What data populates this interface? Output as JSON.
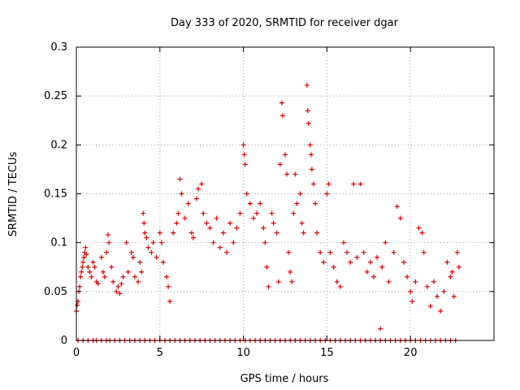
{
  "chart_data": {
    "type": "scatter",
    "title": "Day 333 of 2020, SRMTID for receiver dgar",
    "xlabel": "GPS time / hours",
    "ylabel": "SRMTID / TECUs",
    "xlim": [
      0,
      25
    ],
    "ylim": [
      0,
      0.3
    ],
    "xticks": [
      0,
      5,
      10,
      15,
      20
    ],
    "xtick_labels": [
      "0",
      "5",
      "10",
      "15",
      "20"
    ],
    "yticks": [
      0,
      0.05,
      0.1,
      0.15,
      0.2,
      0.25,
      0.3
    ],
    "ytick_labels": [
      "0",
      "0.05",
      "0.1",
      "0.15",
      "0.2",
      "0.25",
      "0.3"
    ],
    "grid": true,
    "marker": "plus",
    "color": "#dd0000",
    "series": [
      {
        "name": "SRMTID",
        "points": [
          [
            0.0,
            0.03
          ],
          [
            0.05,
            0.036
          ],
          [
            0.1,
            0.04
          ],
          [
            0.15,
            0.05
          ],
          [
            0.2,
            0.055
          ],
          [
            0.25,
            0.065
          ],
          [
            0.3,
            0.07
          ],
          [
            0.35,
            0.075
          ],
          [
            0.4,
            0.08
          ],
          [
            0.45,
            0.085
          ],
          [
            0.5,
            0.09
          ],
          [
            0.55,
            0.095
          ],
          [
            0.6,
            0.088
          ],
          [
            0.7,
            0.075
          ],
          [
            0.8,
            0.07
          ],
          [
            0.9,
            0.065
          ],
          [
            1.0,
            0.08
          ],
          [
            1.1,
            0.075
          ],
          [
            1.2,
            0.06
          ],
          [
            1.3,
            0.058
          ],
          [
            1.5,
            0.085
          ],
          [
            1.6,
            0.07
          ],
          [
            1.7,
            0.065
          ],
          [
            1.8,
            0.09
          ],
          [
            1.9,
            0.108
          ],
          [
            1.95,
            0.1
          ],
          [
            2.1,
            0.075
          ],
          [
            2.2,
            0.06
          ],
          [
            2.4,
            0.05
          ],
          [
            2.5,
            0.055
          ],
          [
            2.6,
            0.048
          ],
          [
            2.7,
            0.058
          ],
          [
            2.8,
            0.065
          ],
          [
            3.0,
            0.1
          ],
          [
            3.1,
            0.07
          ],
          [
            3.3,
            0.09
          ],
          [
            3.4,
            0.085
          ],
          [
            3.5,
            0.065
          ],
          [
            3.7,
            0.06
          ],
          [
            3.8,
            0.08
          ],
          [
            3.9,
            0.07
          ],
          [
            4.0,
            0.13
          ],
          [
            4.05,
            0.12
          ],
          [
            4.1,
            0.11
          ],
          [
            4.2,
            0.105
          ],
          [
            4.3,
            0.095
          ],
          [
            4.5,
            0.09
          ],
          [
            4.6,
            0.1
          ],
          [
            4.8,
            0.085
          ],
          [
            5.0,
            0.11
          ],
          [
            5.1,
            0.1
          ],
          [
            5.2,
            0.08
          ],
          [
            5.4,
            0.065
          ],
          [
            5.5,
            0.055
          ],
          [
            5.6,
            0.04
          ],
          [
            5.8,
            0.11
          ],
          [
            6.0,
            0.12
          ],
          [
            6.1,
            0.13
          ],
          [
            6.2,
            0.165
          ],
          [
            6.3,
            0.15
          ],
          [
            6.5,
            0.125
          ],
          [
            6.7,
            0.14
          ],
          [
            6.9,
            0.11
          ],
          [
            7.0,
            0.105
          ],
          [
            7.2,
            0.145
          ],
          [
            7.3,
            0.155
          ],
          [
            7.5,
            0.16
          ],
          [
            7.6,
            0.13
          ],
          [
            7.8,
            0.12
          ],
          [
            8.0,
            0.115
          ],
          [
            8.2,
            0.1
          ],
          [
            8.4,
            0.125
          ],
          [
            8.6,
            0.095
          ],
          [
            8.8,
            0.11
          ],
          [
            9.0,
            0.09
          ],
          [
            9.2,
            0.12
          ],
          [
            9.4,
            0.1
          ],
          [
            9.6,
            0.115
          ],
          [
            9.8,
            0.13
          ],
          [
            10.0,
            0.2
          ],
          [
            10.05,
            0.19
          ],
          [
            10.1,
            0.18
          ],
          [
            10.2,
            0.15
          ],
          [
            10.4,
            0.14
          ],
          [
            10.6,
            0.125
          ],
          [
            10.8,
            0.13
          ],
          [
            11.0,
            0.14
          ],
          [
            11.2,
            0.115
          ],
          [
            11.3,
            0.1
          ],
          [
            11.4,
            0.075
          ],
          [
            11.5,
            0.055
          ],
          [
            11.7,
            0.13
          ],
          [
            11.8,
            0.12
          ],
          [
            12.0,
            0.11
          ],
          [
            12.1,
            0.06
          ],
          [
            12.2,
            0.18
          ],
          [
            12.3,
            0.243
          ],
          [
            12.35,
            0.23
          ],
          [
            12.5,
            0.19
          ],
          [
            12.6,
            0.17
          ],
          [
            12.7,
            0.09
          ],
          [
            12.8,
            0.07
          ],
          [
            12.9,
            0.06
          ],
          [
            13.0,
            0.13
          ],
          [
            13.1,
            0.17
          ],
          [
            13.2,
            0.14
          ],
          [
            13.4,
            0.15
          ],
          [
            13.5,
            0.12
          ],
          [
            13.6,
            0.11
          ],
          [
            13.8,
            0.261
          ],
          [
            13.85,
            0.235
          ],
          [
            13.9,
            0.222
          ],
          [
            14.0,
            0.2
          ],
          [
            14.05,
            0.19
          ],
          [
            14.1,
            0.175
          ],
          [
            14.2,
            0.16
          ],
          [
            14.3,
            0.14
          ],
          [
            14.4,
            0.11
          ],
          [
            14.6,
            0.09
          ],
          [
            14.8,
            0.08
          ],
          [
            15.0,
            0.15
          ],
          [
            15.1,
            0.16
          ],
          [
            15.2,
            0.09
          ],
          [
            15.4,
            0.075
          ],
          [
            15.6,
            0.06
          ],
          [
            15.8,
            0.055
          ],
          [
            16.0,
            0.1
          ],
          [
            16.2,
            0.09
          ],
          [
            16.4,
            0.08
          ],
          [
            16.6,
            0.16
          ],
          [
            16.8,
            0.085
          ],
          [
            17.0,
            0.16
          ],
          [
            17.2,
            0.09
          ],
          [
            17.4,
            0.07
          ],
          [
            17.6,
            0.08
          ],
          [
            17.8,
            0.065
          ],
          [
            18.0,
            0.085
          ],
          [
            18.2,
            0.012
          ],
          [
            18.3,
            0.075
          ],
          [
            18.5,
            0.1
          ],
          [
            18.7,
            0.06
          ],
          [
            19.0,
            0.09
          ],
          [
            19.2,
            0.137
          ],
          [
            19.4,
            0.125
          ],
          [
            19.6,
            0.08
          ],
          [
            19.8,
            0.065
          ],
          [
            20.0,
            0.05
          ],
          [
            20.1,
            0.04
          ],
          [
            20.3,
            0.06
          ],
          [
            20.5,
            0.115
          ],
          [
            20.7,
            0.11
          ],
          [
            20.8,
            0.09
          ],
          [
            21.0,
            0.055
          ],
          [
            21.2,
            0.035
          ],
          [
            21.4,
            0.06
          ],
          [
            21.6,
            0.045
          ],
          [
            21.8,
            0.03
          ],
          [
            22.0,
            0.05
          ],
          [
            22.2,
            0.08
          ],
          [
            22.4,
            0.065
          ],
          [
            22.5,
            0.07
          ],
          [
            22.6,
            0.045
          ],
          [
            22.8,
            0.09
          ],
          [
            22.9,
            0.075
          ]
        ],
        "zero_points_x": [
          0.1,
          0.4,
          0.7,
          1.0,
          1.2,
          1.5,
          1.8,
          2.0,
          2.3,
          2.6,
          2.9,
          3.2,
          3.5,
          3.8,
          4.1,
          4.4,
          4.7,
          5.0,
          5.3,
          5.6,
          5.9,
          6.2,
          6.5,
          6.8,
          7.1,
          7.4,
          7.7,
          8.0,
          8.3,
          8.6,
          8.9,
          9.2,
          9.5,
          9.8,
          10.1,
          10.4,
          10.7,
          11.0,
          11.3,
          11.6,
          11.9,
          12.2,
          12.5,
          12.8,
          13.1,
          13.4,
          13.7,
          14.0,
          14.3,
          14.6,
          14.9,
          15.2,
          15.5,
          15.8,
          16.1,
          16.4,
          16.7,
          17.0,
          17.3,
          17.6,
          17.9,
          18.2,
          18.5,
          18.8,
          19.1,
          19.4,
          19.7,
          20.0,
          20.3,
          20.6,
          20.9,
          21.2,
          21.5,
          21.8,
          22.1,
          22.4,
          22.7
        ]
      }
    ]
  }
}
